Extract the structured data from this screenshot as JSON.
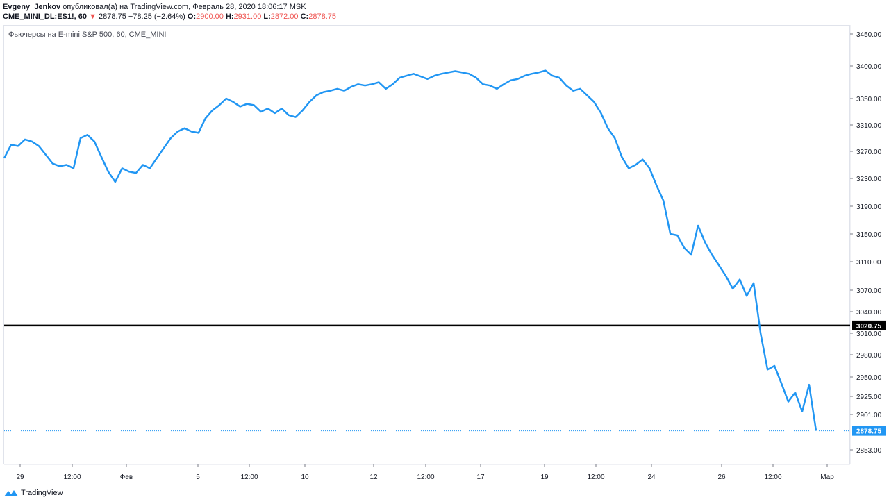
{
  "header": {
    "author": "Evgeny_Jenkov",
    "published": " опубликовал(а) на TradingView.com, Февраль 28, 2020 18:06:17 MSK",
    "symbol": "CME_MINI_DL:ES1!, 60",
    "arrow": "▼",
    "last": "2878.75",
    "change": "−78.25 (−2.64%)",
    "o_label": "O:",
    "o": "2900.00",
    "h_label": "H:",
    "h": "2931.00",
    "l_label": "L:",
    "l": "2872.00",
    "c_label": "C:",
    "c": "2878.75"
  },
  "legend": "Фьючерсы на E-mini S&P 500, 60, CME_MINI",
  "footer": {
    "brand": "TradingView",
    "logo_icon": "tradingview-logo-icon"
  },
  "colors": {
    "line": "#2196f3",
    "level": "#000000",
    "last": "#2196f3"
  },
  "chart_data": {
    "type": "line",
    "y_ticks": [
      "3450.00",
      "3400.00",
      "3350.00",
      "3310.00",
      "3270.00",
      "3230.00",
      "3190.00",
      "3150.00",
      "3110.00",
      "3070.00",
      "3040.00",
      "3010.00",
      "2980.00",
      "2950.00",
      "2925.00",
      "2901.00",
      "2853.00"
    ],
    "x_ticks": [
      "29",
      "12:00",
      "Фев",
      "5",
      "12:00",
      "10",
      "12",
      "12:00",
      "17",
      "19",
      "12:00",
      "24",
      "26",
      "12:00",
      "Мар"
    ],
    "level_line": {
      "value": 3020.75,
      "label": "3020.75"
    },
    "last_price": {
      "value": 2878.75,
      "label": "2878.75"
    },
    "series": [
      {
        "values": [
          3260,
          3280,
          3278,
          3288,
          3285,
          3278,
          3265,
          3252,
          3248,
          3250,
          3245,
          3290,
          3295,
          3285,
          3262,
          3240,
          3225,
          3245,
          3240,
          3238,
          3250,
          3245,
          3260,
          3275,
          3290,
          3300,
          3305,
          3300,
          3298,
          3320,
          3332,
          3340,
          3350,
          3345,
          3338,
          3342,
          3340,
          3330,
          3335,
          3328,
          3335,
          3325,
          3322,
          3332,
          3345,
          3355,
          3360,
          3362,
          3365,
          3362,
          3368,
          3372,
          3370,
          3372,
          3375,
          3365,
          3372,
          3382,
          3385,
          3388,
          3384,
          3380,
          3385,
          3388,
          3390,
          3392,
          3390,
          3388,
          3382,
          3372,
          3370,
          3365,
          3372,
          3378,
          3380,
          3385,
          3388,
          3390,
          3393,
          3385,
          3382,
          3370,
          3362,
          3365,
          3355,
          3345,
          3328,
          3305,
          3290,
          3262,
          3245,
          3250,
          3258,
          3245,
          3220,
          3198,
          3150,
          3148,
          3130,
          3120,
          3162,
          3138,
          3120,
          3105,
          3090,
          3072,
          3085,
          3062,
          3080,
          3010,
          2960,
          2965,
          2942,
          2918,
          2930,
          2905,
          2940,
          2878.75
        ]
      }
    ]
  }
}
